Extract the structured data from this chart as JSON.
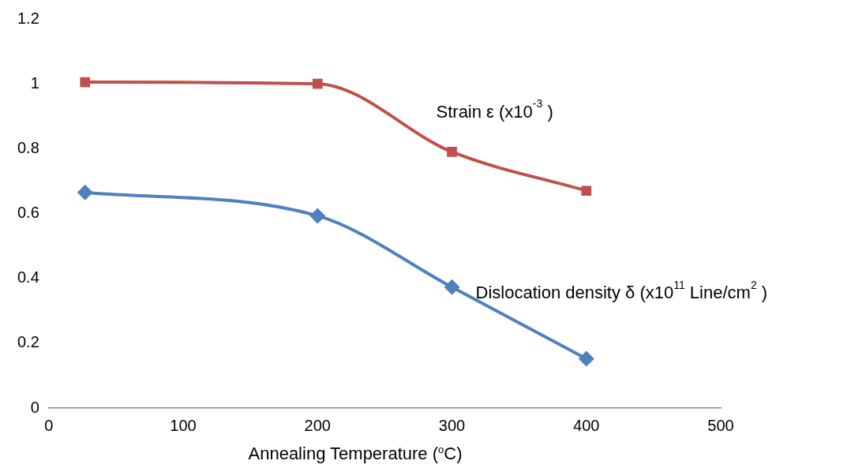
{
  "chart_data": {
    "type": "line",
    "xlabel": "Annealing Temperature ($^{o}$C)",
    "x": [
      27,
      200,
      300,
      400
    ],
    "series": [
      {
        "name": "Strain ε (x10$^{-3}$ )",
        "color": "#c0504d",
        "marker": "square",
        "values": [
          1.005,
          1.0,
          0.79,
          0.67
        ]
      },
      {
        "name": "Dislocation density δ (x10$^{11}$ Line/cm$^{2}$ )",
        "color": "#4f81bd",
        "marker": "diamond",
        "values": [
          0.665,
          0.593,
          0.373,
          0.152
        ]
      }
    ],
    "xlim": [
      0,
      500
    ],
    "xticks": [
      0,
      100,
      200,
      300,
      400,
      500
    ],
    "ylim": [
      0,
      1.2
    ],
    "yticks": [
      0,
      0.2,
      0.4,
      0.6,
      0.8,
      1,
      1.2
    ],
    "grid": false,
    "legend": false,
    "line_style": "solid"
  }
}
